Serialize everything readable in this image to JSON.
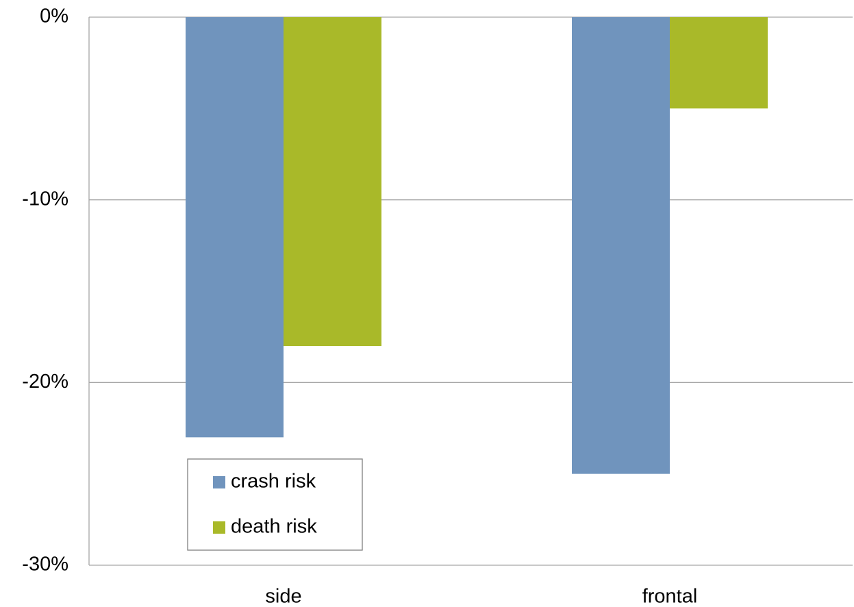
{
  "chart_data": {
    "type": "bar",
    "categories": [
      "side",
      "frontal"
    ],
    "series": [
      {
        "name": "crash risk",
        "color": "#7094bd",
        "values": [
          -23,
          -25
        ]
      },
      {
        "name": "death risk",
        "color": "#a9b929",
        "values": [
          -18,
          -5
        ]
      }
    ],
    "ylim": [
      -30,
      0
    ],
    "yticks": [
      {
        "value": 0,
        "label": "0%"
      },
      {
        "value": -10,
        "label": "-10%"
      },
      {
        "value": -20,
        "label": "-20%"
      },
      {
        "value": -30,
        "label": "-30%"
      }
    ],
    "grid": true,
    "legend": "lower left"
  }
}
